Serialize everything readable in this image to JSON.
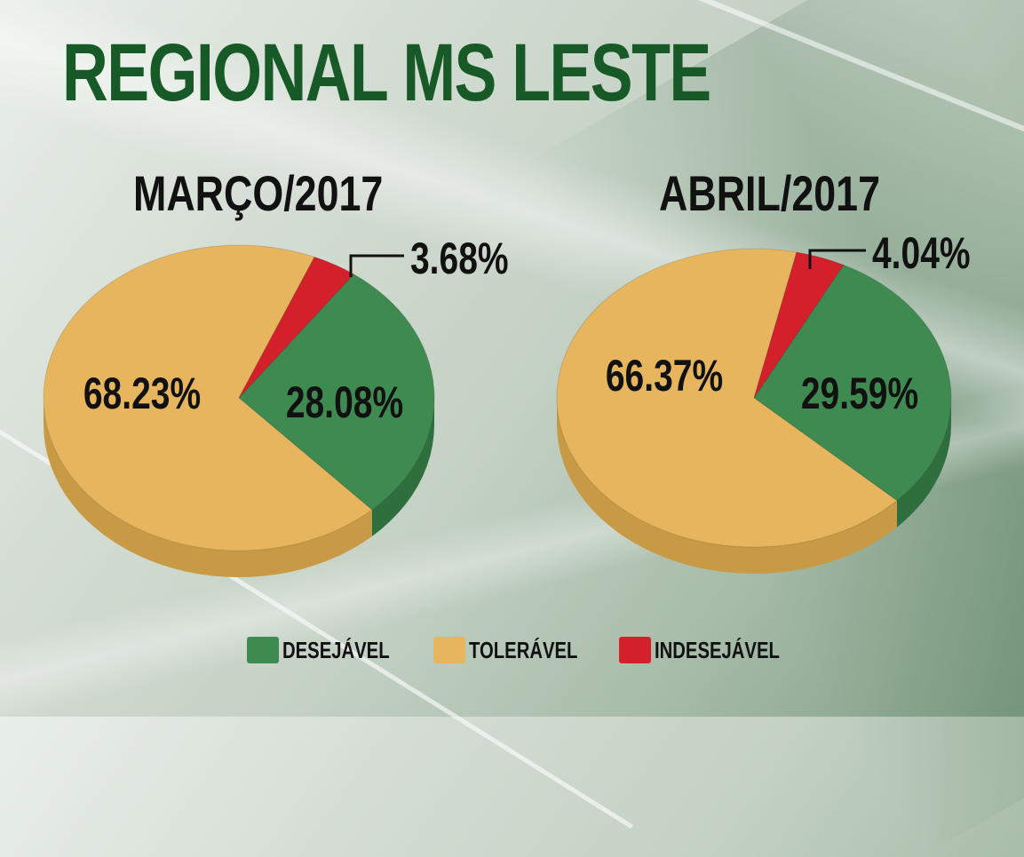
{
  "title": "REGIONAL MS LESTE",
  "colors": {
    "desejavel": "#3f8a50",
    "desejavel_side": "#2f6f3e",
    "toleravel": "#e6b55e",
    "toleravel_side": "#c99a45",
    "indesejavel": "#d3202a",
    "indesejavel_side": "#a8161e"
  },
  "legend": [
    {
      "label": "DESEJÁVEL",
      "color": "#3f8a50"
    },
    {
      "label": "TOLERÁVEL",
      "color": "#e6b55e"
    },
    {
      "label": "INDESEJÁVEL",
      "color": "#d3202a"
    }
  ],
  "chart_data": [
    {
      "type": "pie",
      "title": "MARÇO/2017",
      "slices": [
        {
          "label": "DESEJÁVEL",
          "value": 28.08,
          "text": "28.08%"
        },
        {
          "label": "TOLERÁVEL",
          "value": 68.23,
          "text": "68.23%"
        },
        {
          "label": "INDESEJÁVEL",
          "value": 3.68,
          "text": "3.68%"
        }
      ]
    },
    {
      "type": "pie",
      "title": "ABRIL/2017",
      "slices": [
        {
          "label": "DESEJÁVEL",
          "value": 29.59,
          "text": "29.59%"
        },
        {
          "label": "TOLERÁVEL",
          "value": 66.37,
          "text": "66.37%"
        },
        {
          "label": "INDESEJÁVEL",
          "value": 4.04,
          "text": "4.04%"
        }
      ]
    }
  ]
}
